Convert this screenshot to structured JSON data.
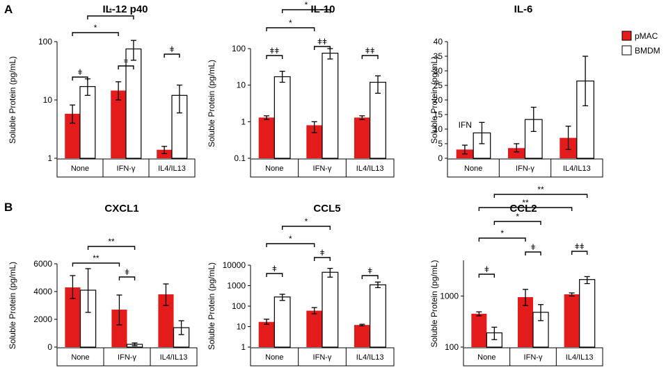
{
  "panel_labels": [
    "A",
    "B"
  ],
  "legend": {
    "items": [
      {
        "label": "pMAC",
        "color": "#e31b1b"
      },
      {
        "label": "BMDM",
        "color": "#ffffff"
      }
    ]
  },
  "chart_data": [
    {
      "type": "bar",
      "title": "IL-12 p40",
      "ylabel": "Soluble Protein (pg/mL)",
      "scale": "log",
      "ylim": [
        1,
        100
      ],
      "ticks": [
        1,
        10,
        100
      ],
      "categories": [
        "None",
        "IFN-γ",
        "IL4/IL13"
      ],
      "series": [
        {
          "name": "pMAC",
          "values": [
            5.8,
            14.5,
            1.4
          ],
          "err": [
            [
              4.0,
              8.2
            ],
            [
              10.0,
              20.5
            ],
            [
              1.2,
              1.6
            ]
          ]
        },
        {
          "name": "BMDM",
          "values": [
            17,
            75,
            12
          ],
          "err": [
            [
              12,
              23
            ],
            [
              48,
              105
            ],
            [
              6,
              18
            ]
          ]
        }
      ],
      "significance": [
        {
          "label": "ǂ",
          "from": [
            0,
            0
          ],
          "to": [
            0,
            1
          ]
        },
        {
          "label": "ǂ",
          "from": [
            1,
            0
          ],
          "to": [
            1,
            1
          ]
        },
        {
          "label": "ǂ",
          "from": [
            2,
            0
          ],
          "to": [
            2,
            1
          ]
        },
        {
          "label": "*",
          "from": [
            0,
            0
          ],
          "to": [
            1,
            0
          ]
        },
        {
          "label": "*",
          "from": [
            0,
            1
          ],
          "to": [
            1,
            1
          ]
        }
      ]
    },
    {
      "type": "bar",
      "title": "IL-10",
      "ylabel": "Soluble Protein (pg/mL)",
      "scale": "log",
      "ylim": [
        0.1,
        100
      ],
      "ticks": [
        0.1,
        1,
        10,
        100
      ],
      "categories": [
        "None",
        "IFN-γ",
        "IL4/IL13"
      ],
      "series": [
        {
          "name": "pMAC",
          "values": [
            1.3,
            0.8,
            1.3
          ],
          "err": [
            [
              1.15,
              1.45
            ],
            [
              0.5,
              1.0
            ],
            [
              1.15,
              1.45
            ]
          ]
        },
        {
          "name": "BMDM",
          "values": [
            17,
            75,
            12
          ],
          "err": [
            [
              12,
              24
            ],
            [
              52,
              100
            ],
            [
              6,
              18
            ]
          ]
        }
      ],
      "significance": [
        {
          "label": "ǂǂ",
          "from": [
            0,
            0
          ],
          "to": [
            0,
            1
          ]
        },
        {
          "label": "ǂǂ",
          "from": [
            1,
            0
          ],
          "to": [
            1,
            1
          ]
        },
        {
          "label": "ǂǂ",
          "from": [
            2,
            0
          ],
          "to": [
            2,
            1
          ]
        },
        {
          "label": "*",
          "from": [
            0,
            0
          ],
          "to": [
            1,
            0
          ]
        },
        {
          "label": "*",
          "from": [
            0,
            1
          ],
          "to": [
            1,
            1
          ]
        }
      ]
    },
    {
      "type": "bar",
      "title": "IL-6",
      "ylabel": "Soluble Protein (pg/mL)",
      "scale": "linear",
      "ylim": [
        0,
        40
      ],
      "ticks": [
        0,
        5,
        10,
        15,
        20,
        25,
        30,
        35,
        40
      ],
      "categories": [
        "None",
        "IFN-γ",
        "IL4/IL13"
      ],
      "series": [
        {
          "name": "pMAC",
          "values": [
            3,
            3.5,
            7
          ],
          "err": [
            [
              1.5,
              4.5
            ],
            [
              2.2,
              5.0
            ],
            [
              3.0,
              11.0
            ]
          ]
        },
        {
          "name": "BMDM",
          "values": [
            8.7,
            13.3,
            26.5
          ],
          "err": [
            [
              5.0,
              12.3
            ],
            [
              9.2,
              17.5
            ],
            [
              18.0,
              35.0
            ]
          ]
        }
      ],
      "significance": [],
      "annotation": "IFN"
    },
    {
      "type": "bar",
      "title": "CXCL1",
      "ylabel": "Soluble Protein (pg/mL)",
      "scale": "linear",
      "ylim": [
        0,
        6000
      ],
      "ticks": [
        0,
        2000,
        4000,
        6000
      ],
      "categories": [
        "None",
        "IFN-γ",
        "IL4/IL13"
      ],
      "series": [
        {
          "name": "pMAC",
          "values": [
            4300,
            2700,
            3800
          ],
          "err": [
            [
              3500,
              5150
            ],
            [
              1600,
              3750
            ],
            [
              3000,
              4550
            ]
          ]
        },
        {
          "name": "BMDM",
          "values": [
            4100,
            200,
            1400
          ],
          "err": [
            [
              2500,
              5650
            ],
            [
              100,
              300
            ],
            [
              900,
              1900
            ]
          ]
        }
      ],
      "significance": [
        {
          "label": "ǂ",
          "from": [
            1,
            0
          ],
          "to": [
            1,
            1
          ]
        },
        {
          "label": "**",
          "from": [
            0,
            0
          ],
          "to": [
            1,
            0
          ]
        },
        {
          "label": "**",
          "from": [
            0,
            1
          ],
          "to": [
            1,
            1
          ]
        }
      ]
    },
    {
      "type": "bar",
      "title": "CCL5",
      "ylabel": "Soluble Protein (pg/mL)",
      "scale": "log",
      "ylim": [
        1,
        10000
      ],
      "ticks": [
        1,
        10,
        100,
        1000,
        10000
      ],
      "categories": [
        "None",
        "IFN-γ",
        "IL4/IL13"
      ],
      "series": [
        {
          "name": "pMAC",
          "values": [
            17,
            60,
            12
          ],
          "err": [
            [
              13,
              23
            ],
            [
              42,
              85
            ],
            [
              11,
              13
            ]
          ]
        },
        {
          "name": "BMDM",
          "values": [
            280,
            4500,
            1100
          ],
          "err": [
            [
              190,
              380
            ],
            [
              2600,
              7000
            ],
            [
              800,
              1500
            ]
          ]
        }
      ],
      "significance": [
        {
          "label": "ǂ",
          "from": [
            0,
            0
          ],
          "to": [
            0,
            1
          ]
        },
        {
          "label": "ǂ",
          "from": [
            1,
            0
          ],
          "to": [
            1,
            1
          ]
        },
        {
          "label": "ǂ",
          "from": [
            2,
            0
          ],
          "to": [
            2,
            1
          ]
        },
        {
          "label": "*",
          "from": [
            0,
            0
          ],
          "to": [
            1,
            0
          ]
        },
        {
          "label": "*",
          "from": [
            0,
            1
          ],
          "to": [
            1,
            1
          ]
        }
      ]
    },
    {
      "type": "bar",
      "title": "CCL2",
      "ylabel": "Soluble Protein (pg/mL)",
      "scale": "log",
      "ylim": [
        100,
        5000
      ],
      "ticks": [
        100,
        1000
      ],
      "categories": [
        "None",
        "IFN-γ",
        "IL4/IL13"
      ],
      "series": [
        {
          "name": "pMAC",
          "values": [
            450,
            950,
            1080
          ],
          "err": [
            [
              410,
              490
            ],
            [
              650,
              1350
            ],
            [
              1000,
              1150
            ]
          ]
        },
        {
          "name": "BMDM",
          "values": [
            190,
            480,
            2100
          ],
          "err": [
            [
              140,
              245
            ],
            [
              330,
              680
            ],
            [
              1750,
              2400
            ]
          ]
        }
      ],
      "significance": [
        {
          "label": "ǂ",
          "from": [
            0,
            0
          ],
          "to": [
            0,
            1
          ]
        },
        {
          "label": "ǂ",
          "from": [
            1,
            0
          ],
          "to": [
            1,
            1
          ]
        },
        {
          "label": "ǂǂ",
          "from": [
            2,
            0
          ],
          "to": [
            2,
            1
          ]
        },
        {
          "label": "*",
          "from": [
            0,
            0
          ],
          "to": [
            1,
            0
          ]
        },
        {
          "label": "*",
          "from": [
            0,
            1
          ],
          "to": [
            1,
            1
          ]
        },
        {
          "label": "**",
          "from": [
            0,
            0
          ],
          "to": [
            2,
            0
          ]
        },
        {
          "label": "**",
          "from": [
            0,
            1
          ],
          "to": [
            2,
            1
          ]
        }
      ]
    }
  ]
}
